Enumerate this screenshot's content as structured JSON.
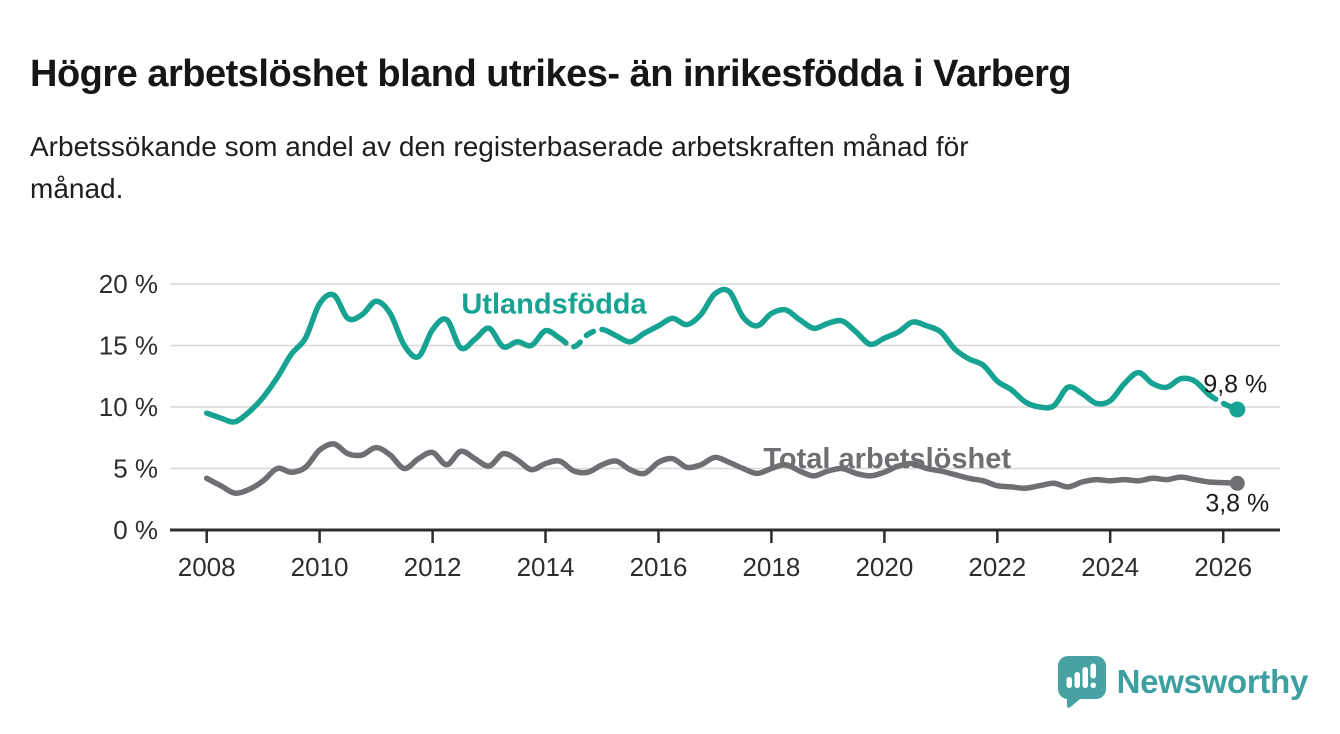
{
  "header": {
    "title": "Högre arbetslöshet bland utrikes- än inrikesfödda i Varberg",
    "subtitle_lines": [
      "Arbetssökande som andel av den registerbaserade arbetskraften månad för",
      "månad."
    ]
  },
  "branding": {
    "logo_text": "Newsworthy",
    "logo_icon": "speech-bubble-bar-chart-icon",
    "text_color": "#3d9fa0",
    "icon_color": "#47a2a1"
  },
  "colors": {
    "accent_teal": "#17a392",
    "line_gray": "#6f6f73",
    "grid": "#d8d8d8",
    "axis": "#2d2d2d",
    "tick_text": "#2e2e2e",
    "value_text": "#1b1b1b"
  },
  "chart_data": {
    "type": "line",
    "title": "Högre arbetslöshet bland utrikes- än inrikesfödda i Varberg",
    "subtitle": "Arbetssökande som andel av den registerbaserade arbetskraften månad för månad.",
    "x_unit": "year",
    "y_unit": "%",
    "x_start": 2008,
    "x_step": 0.25,
    "xlim": [
      2007.35,
      2026.9
    ],
    "ylim": [
      0,
      21.3
    ],
    "grid": "horizontal",
    "legend_position": "inline-labels",
    "x_ticks": [
      {
        "v": 2008,
        "label": "2008"
      },
      {
        "v": 2010,
        "label": "2010"
      },
      {
        "v": 2012,
        "label": "2012"
      },
      {
        "v": 2014,
        "label": "2014"
      },
      {
        "v": 2016,
        "label": "2016"
      },
      {
        "v": 2018,
        "label": "2018"
      },
      {
        "v": 2020,
        "label": "2020"
      },
      {
        "v": 2022,
        "label": "2022"
      },
      {
        "v": 2024,
        "label": "2024"
      },
      {
        "v": 2026,
        "label": "2026"
      }
    ],
    "y_ticks": [
      {
        "v": 0,
        "label": "0 %"
      },
      {
        "v": 5,
        "label": "5 %"
      },
      {
        "v": 10,
        "label": "10 %"
      },
      {
        "v": 15,
        "label": "15 %"
      },
      {
        "v": 20,
        "label": "20 %"
      }
    ],
    "series": [
      {
        "name": "Utlandsfödda",
        "color": "#17a392",
        "end_label": "9,8 %",
        "end_value": 9.8,
        "dot_radius": 8,
        "label_pos": {
          "x": 2014.15,
          "y": 17.6
        },
        "end_label_offset": {
          "dx": -2,
          "dy": -17
        },
        "dashed_segments": [
          [
            25,
            28
          ],
          [
            71,
            73
          ]
        ],
        "values": [
          9.5,
          9.1,
          8.8,
          9.6,
          10.8,
          12.4,
          14.3,
          15.6,
          18.4,
          19.1,
          17.2,
          17.5,
          18.6,
          17.6,
          15.0,
          14.1,
          16.3,
          17.1,
          14.8,
          15.5,
          16.4,
          14.9,
          15.3,
          15.0,
          16.2,
          15.6,
          14.9,
          15.9,
          16.3,
          15.8,
          15.3,
          16.0,
          16.6,
          17.2,
          16.7,
          17.5,
          19.2,
          19.4,
          17.3,
          16.6,
          17.6,
          17.9,
          17.1,
          16.4,
          16.8,
          17.0,
          16.1,
          15.1,
          15.6,
          16.1,
          16.9,
          16.6,
          16.1,
          14.7,
          13.9,
          13.4,
          12.1,
          11.4,
          10.4,
          10.0,
          10.1,
          11.6,
          11.1,
          10.3,
          10.5,
          11.9,
          12.8,
          11.9,
          11.6,
          12.3,
          12.1,
          11.0,
          10.3,
          9.8
        ]
      },
      {
        "name": "Total arbetslöshet",
        "color": "#6f6f73",
        "end_label": "3,8 %",
        "end_value": 3.8,
        "dot_radius": 7.5,
        "label_pos": {
          "x": 2020.05,
          "y": 5.05
        },
        "end_label_offset": {
          "dx": 0,
          "dy": 28
        },
        "dashed_segments": [],
        "values": [
          4.2,
          3.6,
          3.0,
          3.3,
          4.0,
          5.0,
          4.7,
          5.1,
          6.5,
          7.0,
          6.2,
          6.1,
          6.7,
          6.1,
          5.0,
          5.8,
          6.3,
          5.3,
          6.4,
          5.8,
          5.2,
          6.2,
          5.7,
          4.9,
          5.4,
          5.6,
          4.8,
          4.7,
          5.3,
          5.6,
          4.9,
          4.6,
          5.5,
          5.8,
          5.1,
          5.3,
          5.9,
          5.5,
          5.0,
          4.6,
          5.0,
          5.3,
          4.8,
          4.4,
          4.8,
          5.0,
          4.6,
          4.4,
          4.7,
          5.2,
          5.4,
          5.0,
          4.8,
          4.5,
          4.2,
          4.0,
          3.6,
          3.5,
          3.4,
          3.6,
          3.8,
          3.5,
          3.9,
          4.1,
          4.0,
          4.1,
          4.0,
          4.2,
          4.1,
          4.3,
          4.1,
          3.9,
          3.85,
          3.8
        ]
      }
    ]
  }
}
